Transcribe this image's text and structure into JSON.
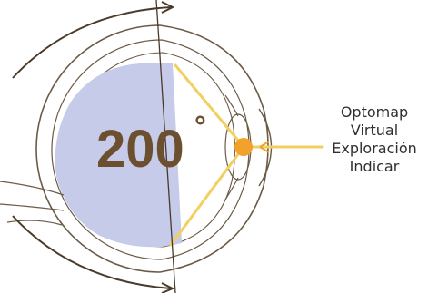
{
  "diagram": {
    "angle_value": "200",
    "angle_unit": "°",
    "label_lines": [
      "Optomap",
      "Virtual",
      "Exploración",
      "Indicar"
    ],
    "colors": {
      "outline": "#6b5a46",
      "scan_area": "#c5cbe8",
      "angle_text": "#6b4f2e",
      "ray": "#f2d060",
      "focus_point": "#f2a12a",
      "arrow": "#4a3a2a"
    }
  }
}
